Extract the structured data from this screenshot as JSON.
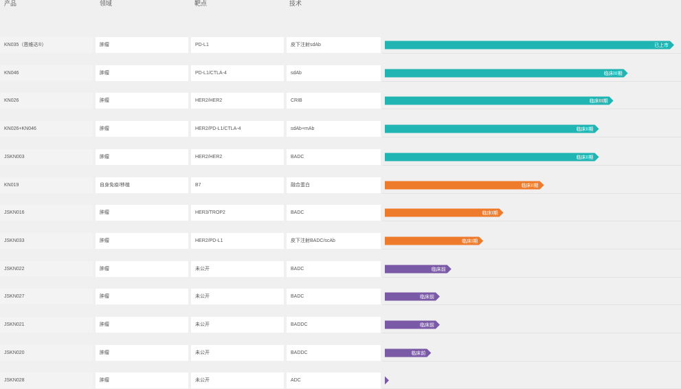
{
  "header": {
    "product": "产品",
    "field": "领域",
    "target": "靶点",
    "tech": "技术"
  },
  "colors": {
    "teal": "#20b5b3",
    "orange": "#ee7a2c",
    "purple": "#7a5aa6"
  },
  "chart_data": {
    "type": "bar",
    "orientation": "horizontal",
    "stage_scale_note_values": "progress fraction of full track (0-1)",
    "rows": [
      {
        "product": "KN035（恩维达®）",
        "field": "肿瘤",
        "target": "PD-L1",
        "tech": "皮下注射sdAb",
        "stage": "已上市",
        "value": 1.0,
        "color": "teal"
      },
      {
        "product": "KN046",
        "field": "肿瘤",
        "target": "PD-L1/CTLA-4",
        "tech": "sdAb",
        "stage": "临床III期",
        "value": 0.84,
        "color": "teal"
      },
      {
        "product": "KN026",
        "field": "肿瘤",
        "target": "HER2/HER2",
        "tech": "CRIB",
        "stage": "临床III期",
        "value": 0.79,
        "color": "teal"
      },
      {
        "product": "KN026+KN046",
        "field": "肿瘤",
        "target": "HER2/PD-L1/CTLA-4",
        "tech": "sdAb+mAb",
        "stage": "临床II期",
        "value": 0.74,
        "color": "teal"
      },
      {
        "product": "JSKN003",
        "field": "肿瘤",
        "target": "HER2/HER2",
        "tech": "BADC",
        "stage": "临床II期",
        "value": 0.74,
        "color": "teal"
      },
      {
        "product": "KN019",
        "field": "自身免疫/移植",
        "target": "B7",
        "tech": "融合蛋白",
        "stage": "临床II期",
        "value": 0.55,
        "color": "orange"
      },
      {
        "product": "JSKN016",
        "field": "肿瘤",
        "target": "HER3/TROP2",
        "tech": "BADC",
        "stage": "临床I期",
        "value": 0.41,
        "color": "orange"
      },
      {
        "product": "JSKN033",
        "field": "肿瘤",
        "target": "HER2/PD-L1",
        "tech": "皮下注射BADC/scAb",
        "stage": "临床I期",
        "value": 0.34,
        "color": "orange"
      },
      {
        "product": "JSKN022",
        "field": "肿瘤",
        "target": "未公开",
        "tech": "BADC",
        "stage": "临床前",
        "value": 0.23,
        "color": "purple"
      },
      {
        "product": "JSKN027",
        "field": "肿瘤",
        "target": "未公开",
        "tech": "BADC",
        "stage": "临床前",
        "value": 0.19,
        "color": "purple"
      },
      {
        "product": "JSKN021",
        "field": "肿瘤",
        "target": "未公开",
        "tech": "BADDC",
        "stage": "临床前",
        "value": 0.19,
        "color": "purple"
      },
      {
        "product": "JSKN020",
        "field": "肿瘤",
        "target": "未公开",
        "tech": "BADDC",
        "stage": "临床前",
        "value": 0.16,
        "color": "purple"
      },
      {
        "product": "JSKN028",
        "field": "肿瘤",
        "target": "未公开",
        "tech": "ADC",
        "stage": "",
        "value": 0.0,
        "color": "purple"
      }
    ]
  }
}
